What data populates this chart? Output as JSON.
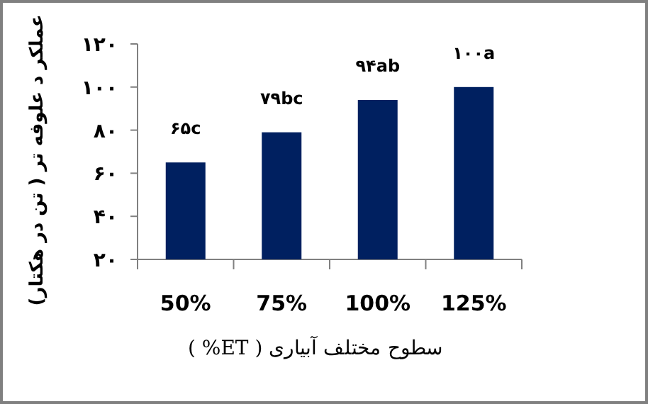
{
  "chart_data": {
    "type": "bar",
    "xlabel": "سطوح مختلف آبیاری ( ET% )",
    "ylabel": "عملکر د علوفه تر ( تن در هکتار)",
    "categories": [
      "50%",
      "75%",
      "100%",
      "125%"
    ],
    "values": [
      65,
      79,
      94,
      100
    ],
    "value_labels": [
      "۶۵c",
      "۷۹bc",
      "۹۴ab",
      "۱۰۰a"
    ],
    "color": "#002060",
    "ylim": [
      20,
      120
    ],
    "yticks": [
      {
        "value": 20,
        "label": "۲۰"
      },
      {
        "value": 40,
        "label": "۴۰"
      },
      {
        "value": 60,
        "label": "۶۰"
      },
      {
        "value": 80,
        "label": "۸۰"
      },
      {
        "value": 100,
        "label": "۱۰۰"
      },
      {
        "value": 120,
        "label": "۱۲۰"
      }
    ],
    "grid": false
  }
}
